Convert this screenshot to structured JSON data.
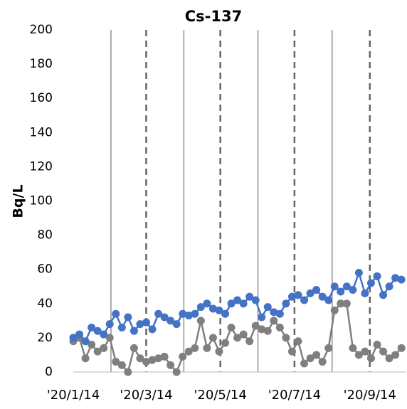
{
  "chart_data": {
    "type": "line",
    "title": "Cs-137",
    "ylabel": "Bq/L",
    "x": [
      "2020-01-14",
      "2020-01-19",
      "2020-01-24",
      "2020-01-29",
      "2020-02-03",
      "2020-02-08",
      "2020-02-13",
      "2020-02-18",
      "2020-02-23",
      "2020-02-28",
      "2020-03-04",
      "2020-03-09",
      "2020-03-14",
      "2020-03-19",
      "2020-03-24",
      "2020-03-29",
      "2020-04-03",
      "2020-04-08",
      "2020-04-13",
      "2020-04-18",
      "2020-04-23",
      "2020-04-28",
      "2020-05-03",
      "2020-05-08",
      "2020-05-13",
      "2020-05-18",
      "2020-05-23",
      "2020-05-28",
      "2020-06-02",
      "2020-06-07",
      "2020-06-12",
      "2020-06-17",
      "2020-06-22",
      "2020-06-27",
      "2020-07-02",
      "2020-07-07",
      "2020-07-12",
      "2020-07-17",
      "2020-07-22",
      "2020-07-27",
      "2020-08-01",
      "2020-08-06",
      "2020-08-11",
      "2020-08-16",
      "2020-08-21",
      "2020-08-26",
      "2020-08-31",
      "2020-09-05",
      "2020-09-10",
      "2020-09-15",
      "2020-09-20",
      "2020-09-25",
      "2020-09-30",
      "2020-10-05",
      "2020-10-10"
    ],
    "series": [
      {
        "color": "#4472c4",
        "values": [
          20,
          22,
          18,
          26,
          24,
          22,
          28,
          34,
          26,
          32,
          24,
          28,
          29,
          25,
          34,
          32,
          30,
          28,
          34,
          33,
          34,
          38,
          40,
          37,
          36,
          34,
          40,
          42,
          40,
          44,
          42,
          32,
          38,
          35,
          34,
          40,
          44,
          45,
          42,
          46,
          48,
          44,
          42,
          50,
          47,
          50,
          48,
          58,
          46,
          52,
          56,
          45,
          50,
          55,
          54
        ]
      },
      {
        "color": "#7f7f7f",
        "values": [
          18,
          20,
          8,
          16,
          12,
          14,
          20,
          6,
          4,
          0,
          14,
          8,
          6,
          7,
          8,
          9,
          4,
          0,
          9,
          12,
          14,
          30,
          14,
          20,
          12,
          17,
          26,
          20,
          22,
          18,
          27,
          25,
          24,
          30,
          26,
          20,
          12,
          18,
          5,
          8,
          10,
          6,
          14,
          36,
          40,
          40,
          14,
          10,
          12,
          8,
          16,
          12,
          8,
          10,
          14
        ]
      }
    ],
    "xlim": [
      "2020-01-14",
      "2020-10-14"
    ],
    "xticks": [
      {
        "value": "2020-01-14",
        "label": "'20/1/14"
      },
      {
        "value": "2020-03-14",
        "label": "'20/3/14"
      },
      {
        "value": "2020-05-14",
        "label": "'20/5/14"
      },
      {
        "value": "2020-07-14",
        "label": "'20/7/14"
      },
      {
        "value": "2020-09-14",
        "label": "'20/9/14"
      }
    ],
    "xminor": [
      "2020-02-14",
      "2020-04-14",
      "2020-06-14",
      "2020-08-14"
    ],
    "ylim": [
      0,
      200
    ],
    "yticks": [
      0,
      20,
      40,
      60,
      80,
      100,
      120,
      140,
      160,
      180,
      200
    ]
  }
}
